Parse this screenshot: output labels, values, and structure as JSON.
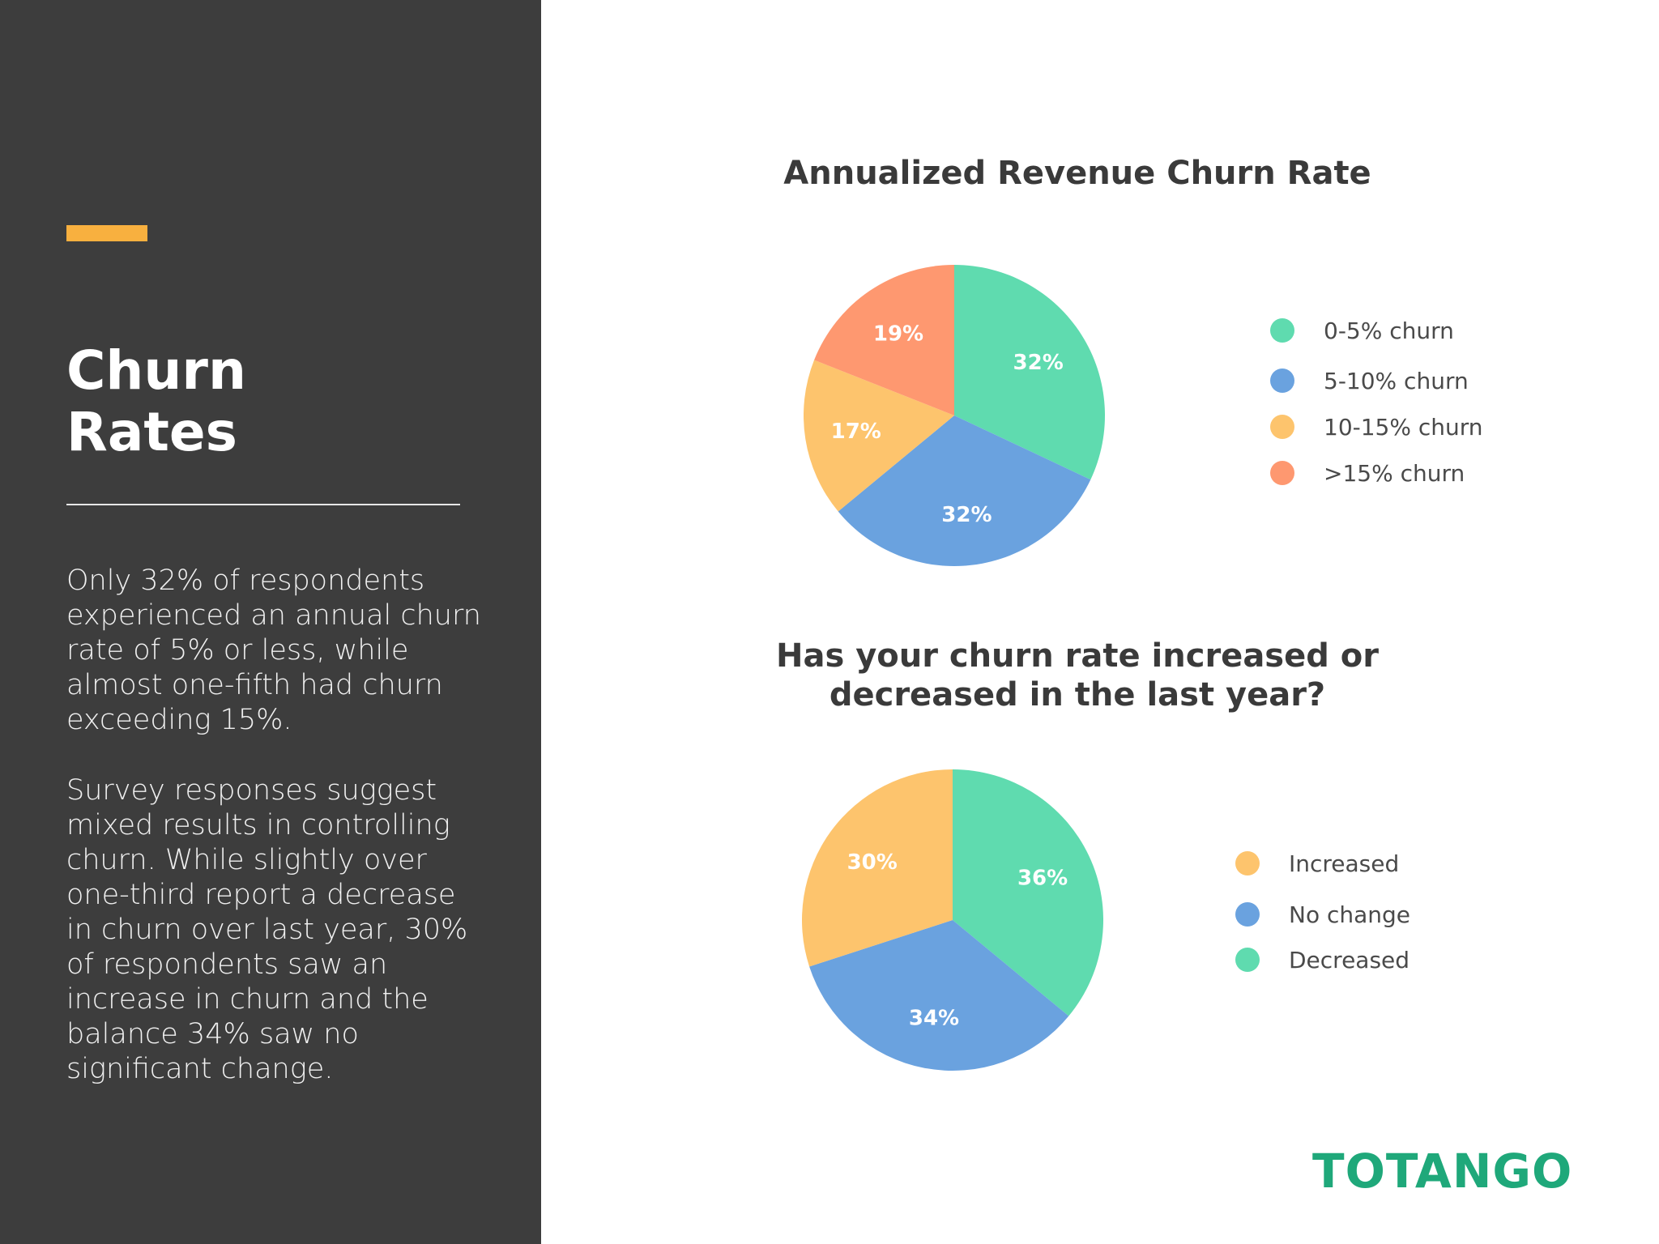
{
  "sidebar": {
    "title_lines": [
      "Churn",
      "Rates"
    ],
    "paragraph_1": "Only 32% of respondents experienced an annual churn rate of 5% or less, while almost one-fifth had churn exceeding 15%.",
    "paragraph_2": "Survey responses suggest mixed results in controlling churn. While slightly over one-third report a decrease in churn over last year, 30% of respondents saw an increase in churn and the balance 34% saw no significant change.",
    "accent_color": "#f8b03f",
    "background_color": "#3d3d3d"
  },
  "logo": {
    "text": "TOTANGO",
    "color": "#1fa87a"
  },
  "chart_data": [
    {
      "type": "pie",
      "title": "Annualized Revenue Churn Rate",
      "categories": [
        "0-5% churn",
        "5-10% churn",
        "10-15% churn",
        ">15% churn"
      ],
      "values": [
        32,
        32,
        17,
        19
      ],
      "labels": [
        "32%",
        "32%",
        "17%",
        "19%"
      ],
      "colors": [
        "#5fdbaf",
        "#6aa2df",
        "#fdc46d",
        "#fe9870"
      ],
      "legend_order": [
        0,
        1,
        2,
        3
      ],
      "legend_position": "right"
    },
    {
      "type": "pie",
      "title": "Has your churn rate increased or decreased in the last year?",
      "categories": [
        "Decreased",
        "No change",
        "Increased"
      ],
      "values": [
        36,
        34,
        30
      ],
      "labels": [
        "36%",
        "34%",
        "30%"
      ],
      "colors": [
        "#5fdbaf",
        "#6aa2df",
        "#fdc46d"
      ],
      "legend_order": [
        2,
        1,
        0
      ],
      "legend_position": "right"
    }
  ]
}
